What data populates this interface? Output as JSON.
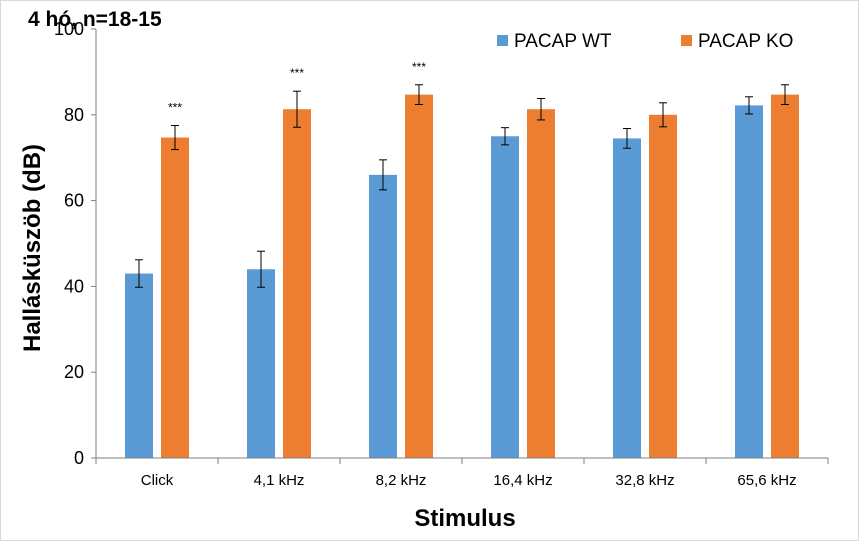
{
  "chart_data": {
    "type": "bar",
    "title": "4 hó, n=18-15",
    "xlabel": "Stimulus",
    "ylabel": "Hallásküszöb (dB)",
    "ylim": [
      0,
      100
    ],
    "yticks": [
      "0",
      "20",
      "40",
      "60",
      "80",
      "100"
    ],
    "categories": [
      "Click",
      "4,1 kHz",
      "8,2 kHz",
      "16,4 kHz",
      "32,8 kHz",
      "65,6 kHz"
    ],
    "series": [
      {
        "name": "PACAP WT",
        "color": "#5b9bd5",
        "values": [
          43,
          44,
          66,
          75,
          74.5,
          82.2
        ],
        "errors": [
          3.2,
          4.2,
          3.5,
          2.0,
          2.3,
          2.0
        ]
      },
      {
        "name": "PACAP KO",
        "color": "#ed7d31",
        "values": [
          74.7,
          81.3,
          84.7,
          81.3,
          80,
          84.7
        ],
        "errors": [
          2.8,
          4.2,
          2.3,
          2.5,
          2.8,
          2.3
        ]
      }
    ],
    "significance": [
      "***",
      "***",
      "***",
      "",
      "",
      ""
    ],
    "legend_position": "top-right",
    "grid": false
  }
}
